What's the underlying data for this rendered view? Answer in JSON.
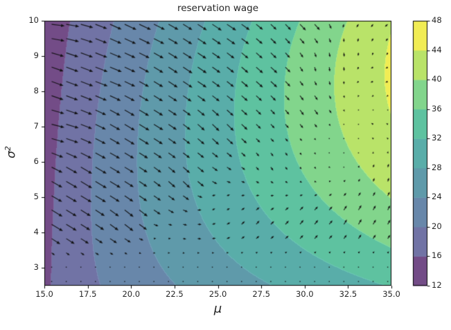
{
  "title": "reservation wage",
  "axes": {
    "xlabel": "μ",
    "ylabel_base": "σ",
    "ylabel_exp": "2",
    "x_range": [
      15,
      35
    ],
    "y_range": [
      2.5,
      10
    ],
    "x_tick_values": [
      15,
      17.5,
      20,
      22.5,
      25,
      27.5,
      30,
      32.5,
      35
    ],
    "x_tick_labels": [
      "15.0",
      "17.5",
      "20.0",
      "22.5",
      "25.0",
      "27.5",
      "30.0",
      "32.5",
      "35.0"
    ],
    "y_tick_values": [
      3,
      4,
      5,
      6,
      7,
      8,
      9,
      10
    ],
    "y_tick_labels": [
      "3",
      "4",
      "5",
      "6",
      "7",
      "8",
      "9",
      "10"
    ]
  },
  "colorbar": {
    "range": [
      12,
      48
    ],
    "tick_values": [
      12,
      16,
      20,
      24,
      28,
      32,
      36,
      40,
      44,
      48
    ],
    "tick_labels": [
      "12",
      "16",
      "20",
      "24",
      "28",
      "32",
      "36",
      "40",
      "44",
      "48"
    ]
  },
  "chart_data": {
    "type": "filled-contour+quiver",
    "title": "reservation wage",
    "xlabel": "μ",
    "ylabel": "σ²",
    "x_range": [
      15,
      35
    ],
    "y_range": [
      2.5,
      10
    ],
    "levels": [
      12,
      16,
      20,
      24,
      28,
      32,
      36,
      40,
      44,
      48
    ],
    "band_colors": [
      "#734c87",
      "#7173a5",
      "#6887aa",
      "#5f9aaa",
      "#59ada9",
      "#5ec2a0",
      "#82d58c",
      "#b9e369",
      "#f1ec54"
    ],
    "arrow_color": "rgba(15,15,15,0.92)",
    "surface_model": {
      "comment": "wbar(m,s): t=s-2.5; w15=14.6-0.16t; w35=32.2+3.824t-0.2493t^2-0.0077t^3; lam=((m-15)/20)^(0.65+0.04t); w=w15+lam*(w35-w15)",
      "w15": {
        "c0": 14.6,
        "c1": -0.16
      },
      "w35": {
        "c0": 32.2,
        "c1": 3.824,
        "c2": -0.2493,
        "c3": -0.0077
      },
      "gamma": {
        "c0": 0.65,
        "c1": 0.04
      }
    },
    "quiver": {
      "grid": {
        "cols": 24,
        "rows": 19,
        "m0": 15.42,
        "dm": 0.842,
        "s0": 9.9,
        "ds": -0.4044
      },
      "idw_power": 1.25,
      "metric": {
        "dm": 2.4,
        "ds": 0.9
      },
      "damping": {
        "s_zero": 3.0,
        "width": 0.9
      },
      "scale": 1.15,
      "max_len": 19,
      "dot_threshold": 2.0,
      "anchors": [
        [
          15,
          10,
          18,
          -2
        ],
        [
          15,
          7,
          17,
          -4
        ],
        [
          15,
          4.2,
          15,
          -9
        ],
        [
          15,
          3.4,
          8,
          -6
        ],
        [
          17.5,
          8.5,
          16,
          -6
        ],
        [
          17.5,
          5.5,
          15,
          -9
        ],
        [
          20,
          10,
          15,
          -7
        ],
        [
          20,
          7,
          13,
          -8
        ],
        [
          20,
          4.4,
          12,
          -10
        ],
        [
          21.5,
          3.9,
          2,
          1.5
        ],
        [
          23,
          8.5,
          12,
          -8
        ],
        [
          23,
          5.5,
          9,
          -9
        ],
        [
          25,
          10,
          12,
          -8
        ],
        [
          25,
          7,
          9,
          -9
        ],
        [
          25,
          4.8,
          3,
          3
        ],
        [
          27,
          4.3,
          4,
          5
        ],
        [
          27.5,
          8.5,
          9,
          -8
        ],
        [
          28,
          6,
          3,
          -5
        ],
        [
          30,
          10,
          8,
          -8
        ],
        [
          30,
          7.5,
          5,
          -7
        ],
        [
          30,
          6,
          1.5,
          -3
        ],
        [
          30,
          4.3,
          4.5,
          6
        ],
        [
          31.5,
          8.8,
          0.5,
          -6
        ],
        [
          32,
          6.5,
          -0.5,
          0.5
        ],
        [
          33,
          10,
          -3,
          -4
        ],
        [
          35,
          10,
          -4,
          -3
        ],
        [
          34,
          8.4,
          -4,
          -1
        ],
        [
          34,
          7,
          -3,
          2
        ],
        [
          34.5,
          5.6,
          1.5,
          5
        ],
        [
          33,
          4.4,
          4,
          7
        ],
        [
          35,
          4.6,
          3,
          6
        ]
      ]
    }
  }
}
